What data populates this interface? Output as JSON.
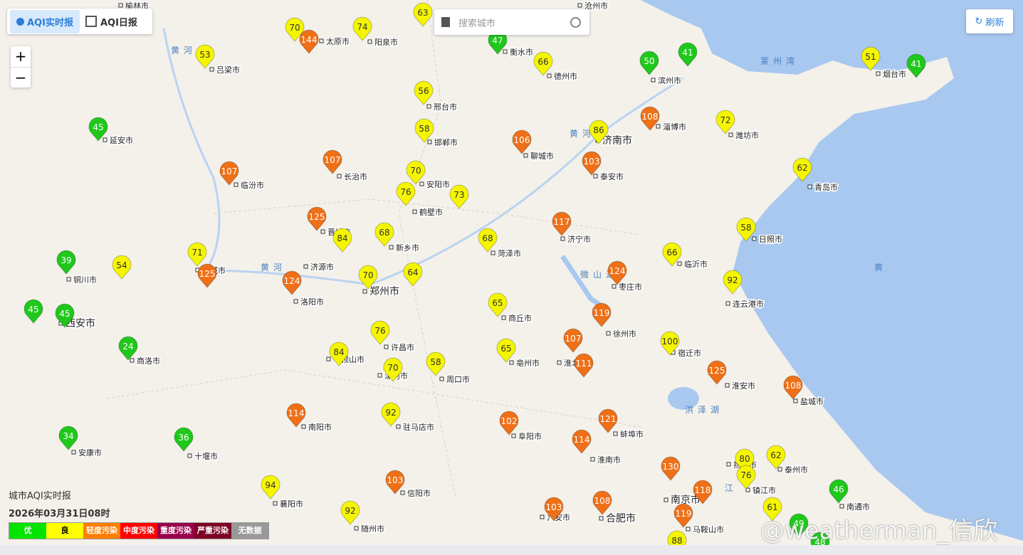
{
  "tabs": [
    "AQI实时报",
    "AQI日报"
  ],
  "search_placeholder": "搜索城市",
  "refresh": "刷新",
  "zoom": [
    "+",
    "−"
  ],
  "markers": [
    {
      "value": 63,
      "color": "#f5f500"
    },
    {
      "value": 70,
      "color": "#f5f500"
    },
    {
      "value": 144,
      "color": "#ef7017"
    },
    {
      "value": 74,
      "color": "#f5f500"
    },
    {
      "value": 47,
      "color": "#1fc81a"
    },
    {
      "value": 53,
      "color": "#f5f500"
    },
    {
      "value": 66,
      "color": "#f5f500"
    },
    {
      "value": 50,
      "color": "#1fc81a"
    },
    {
      "value": 41,
      "color": "#1fc81a"
    },
    {
      "value": 51,
      "color": "#f5f500"
    },
    {
      "value": 41,
      "color": "#1fc81a"
    },
    {
      "value": 56,
      "color": "#f5f500"
    },
    {
      "value": 45,
      "color": "#1fc81a"
    },
    {
      "value": 108,
      "color": "#ef7017"
    },
    {
      "value": 72,
      "color": "#f5f500"
    },
    {
      "value": 86,
      "color": "#f5f500"
    },
    {
      "value": 58,
      "color": "#f5f500"
    },
    {
      "value": 106,
      "color": "#ef7017"
    },
    {
      "value": 107,
      "color": "#ef7017"
    },
    {
      "value": 103,
      "color": "#ef7017"
    },
    {
      "value": 107,
      "color": "#ef7017"
    },
    {
      "value": 70,
      "color": "#f5f500"
    },
    {
      "value": 62,
      "color": "#f5f500"
    },
    {
      "value": 76,
      "color": "#f5f500"
    },
    {
      "value": 73,
      "color": "#f5f500"
    },
    {
      "value": 125,
      "color": "#ef7017"
    },
    {
      "value": 117,
      "color": "#ef7017"
    },
    {
      "value": 84,
      "color": "#f5f500"
    },
    {
      "value": 68,
      "color": "#f5f500"
    },
    {
      "value": 58,
      "color": "#f5f500"
    },
    {
      "value": 68,
      "color": "#f5f500"
    },
    {
      "value": 71,
      "color": "#f5f500"
    },
    {
      "value": 66,
      "color": "#f5f500"
    },
    {
      "value": 39,
      "color": "#1fc81a"
    },
    {
      "value": 54,
      "color": "#f5f500"
    },
    {
      "value": 125,
      "color": "#ef7017"
    },
    {
      "value": 124,
      "color": "#ef7017"
    },
    {
      "value": 70,
      "color": "#f5f500"
    },
    {
      "value": 64,
      "color": "#f5f500"
    },
    {
      "value": 124,
      "color": "#ef7017"
    },
    {
      "value": 92,
      "color": "#f5f500"
    },
    {
      "value": 45,
      "color": "#1fc81a"
    },
    {
      "value": 45,
      "color": "#1fc81a"
    },
    {
      "value": 65,
      "color": "#f5f500"
    },
    {
      "value": 119,
      "color": "#ef7017"
    },
    {
      "value": 76,
      "color": "#f5f500"
    },
    {
      "value": 107,
      "color": "#ef7017"
    },
    {
      "value": 100,
      "color": "#f5f500"
    },
    {
      "value": 84,
      "color": "#f5f500"
    },
    {
      "value": 65,
      "color": "#f5f500"
    },
    {
      "value": 24,
      "color": "#1fc81a"
    },
    {
      "value": 111,
      "color": "#ef7017"
    },
    {
      "value": 70,
      "color": "#f5f500"
    },
    {
      "value": 58,
      "color": "#f5f500"
    },
    {
      "value": 125,
      "color": "#ef7017"
    },
    {
      "value": 108,
      "color": "#ef7017"
    },
    {
      "value": 114,
      "color": "#ef7017"
    },
    {
      "value": 92,
      "color": "#f5f500"
    },
    {
      "value": 102,
      "color": "#ef7017"
    },
    {
      "value": 121,
      "color": "#ef7017"
    },
    {
      "value": 34,
      "color": "#1fc81a"
    },
    {
      "value": 36,
      "color": "#1fc81a"
    },
    {
      "value": 114,
      "color": "#ef7017"
    },
    {
      "value": 80,
      "color": "#f5f500"
    },
    {
      "value": 62,
      "color": "#f5f500"
    },
    {
      "value": 130,
      "color": "#ef7017"
    },
    {
      "value": 76,
      "color": "#f5f500"
    },
    {
      "value": 103,
      "color": "#ef7017"
    },
    {
      "value": 94,
      "color": "#f5f500"
    },
    {
      "value": 118,
      "color": "#ef7017"
    },
    {
      "value": 46,
      "color": "#1fc81a"
    },
    {
      "value": 103,
      "color": "#ef7017"
    },
    {
      "value": 108,
      "color": "#ef7017"
    },
    {
      "value": 61,
      "color": "#f5f500"
    },
    {
      "value": 92,
      "color": "#f5f500"
    },
    {
      "value": 119,
      "color": "#ef7017"
    },
    {
      "value": 49,
      "color": "#1fc81a"
    },
    {
      "value": 88,
      "color": "#f5f500"
    },
    {
      "value": 48,
      "color": "#1fc81a"
    }
  ],
  "cities": [
    "榆林市",
    "沧州市",
    "太原市",
    "阳泉市",
    "衡水市",
    "吕梁市",
    "德州市",
    "滨州市",
    "烟台市",
    "邢台市",
    "延安市",
    "淄博市",
    "潍坊市",
    "济南市",
    "邯郸市",
    "聊城市",
    "长治市",
    "泰安市",
    "临汾市",
    "安阳市",
    "青岛市",
    "鹤壁市",
    "晋城市",
    "济宁市",
    "新乡市",
    "日照市",
    "菏泽市",
    "临沂市",
    "铜川市",
    "运城市",
    "济源市",
    "郑州市",
    "洛阳市",
    "枣庄市",
    "连云港市",
    "西安市",
    "商丘市",
    "徐州市",
    "许昌市",
    "宿迁市",
    "平顶山市",
    "亳州市",
    "商洛市",
    "淮北市",
    "漯河市",
    "周口市",
    "淮安市",
    "盐城市",
    "南阳市",
    "驻马店市",
    "阜阳市",
    "蚌埠市",
    "安康市",
    "十堰市",
    "淮南市",
    "扬州市",
    "泰州市",
    "镇江市",
    "信阳市",
    "襄阳市",
    "南京市",
    "南通市",
    "马鞍山市",
    "六安市",
    "合肥市",
    "随州市"
  ],
  "places": [
    "莱州湾",
    "黄",
    "黄河",
    "黄河",
    "黄河",
    "微山湖",
    "洪泽湖",
    "江"
  ],
  "footer": {
    "title": "城市AQI实时报",
    "time": "2026年03月31日08时"
  },
  "legend": [
    {
      "label": "优",
      "color": "#00e400"
    },
    {
      "label": "良",
      "color": "#ffff00"
    },
    {
      "label": "轻度污染",
      "color": "#ff7e00"
    },
    {
      "label": "中度污染",
      "color": "#ff0000"
    },
    {
      "label": "重度污染",
      "color": "#99004c"
    },
    {
      "label": "严重污染",
      "color": "#7e0023"
    },
    {
      "label": "无数据",
      "color": "#999999"
    }
  ],
  "watermark": "@weatherman_信欣"
}
